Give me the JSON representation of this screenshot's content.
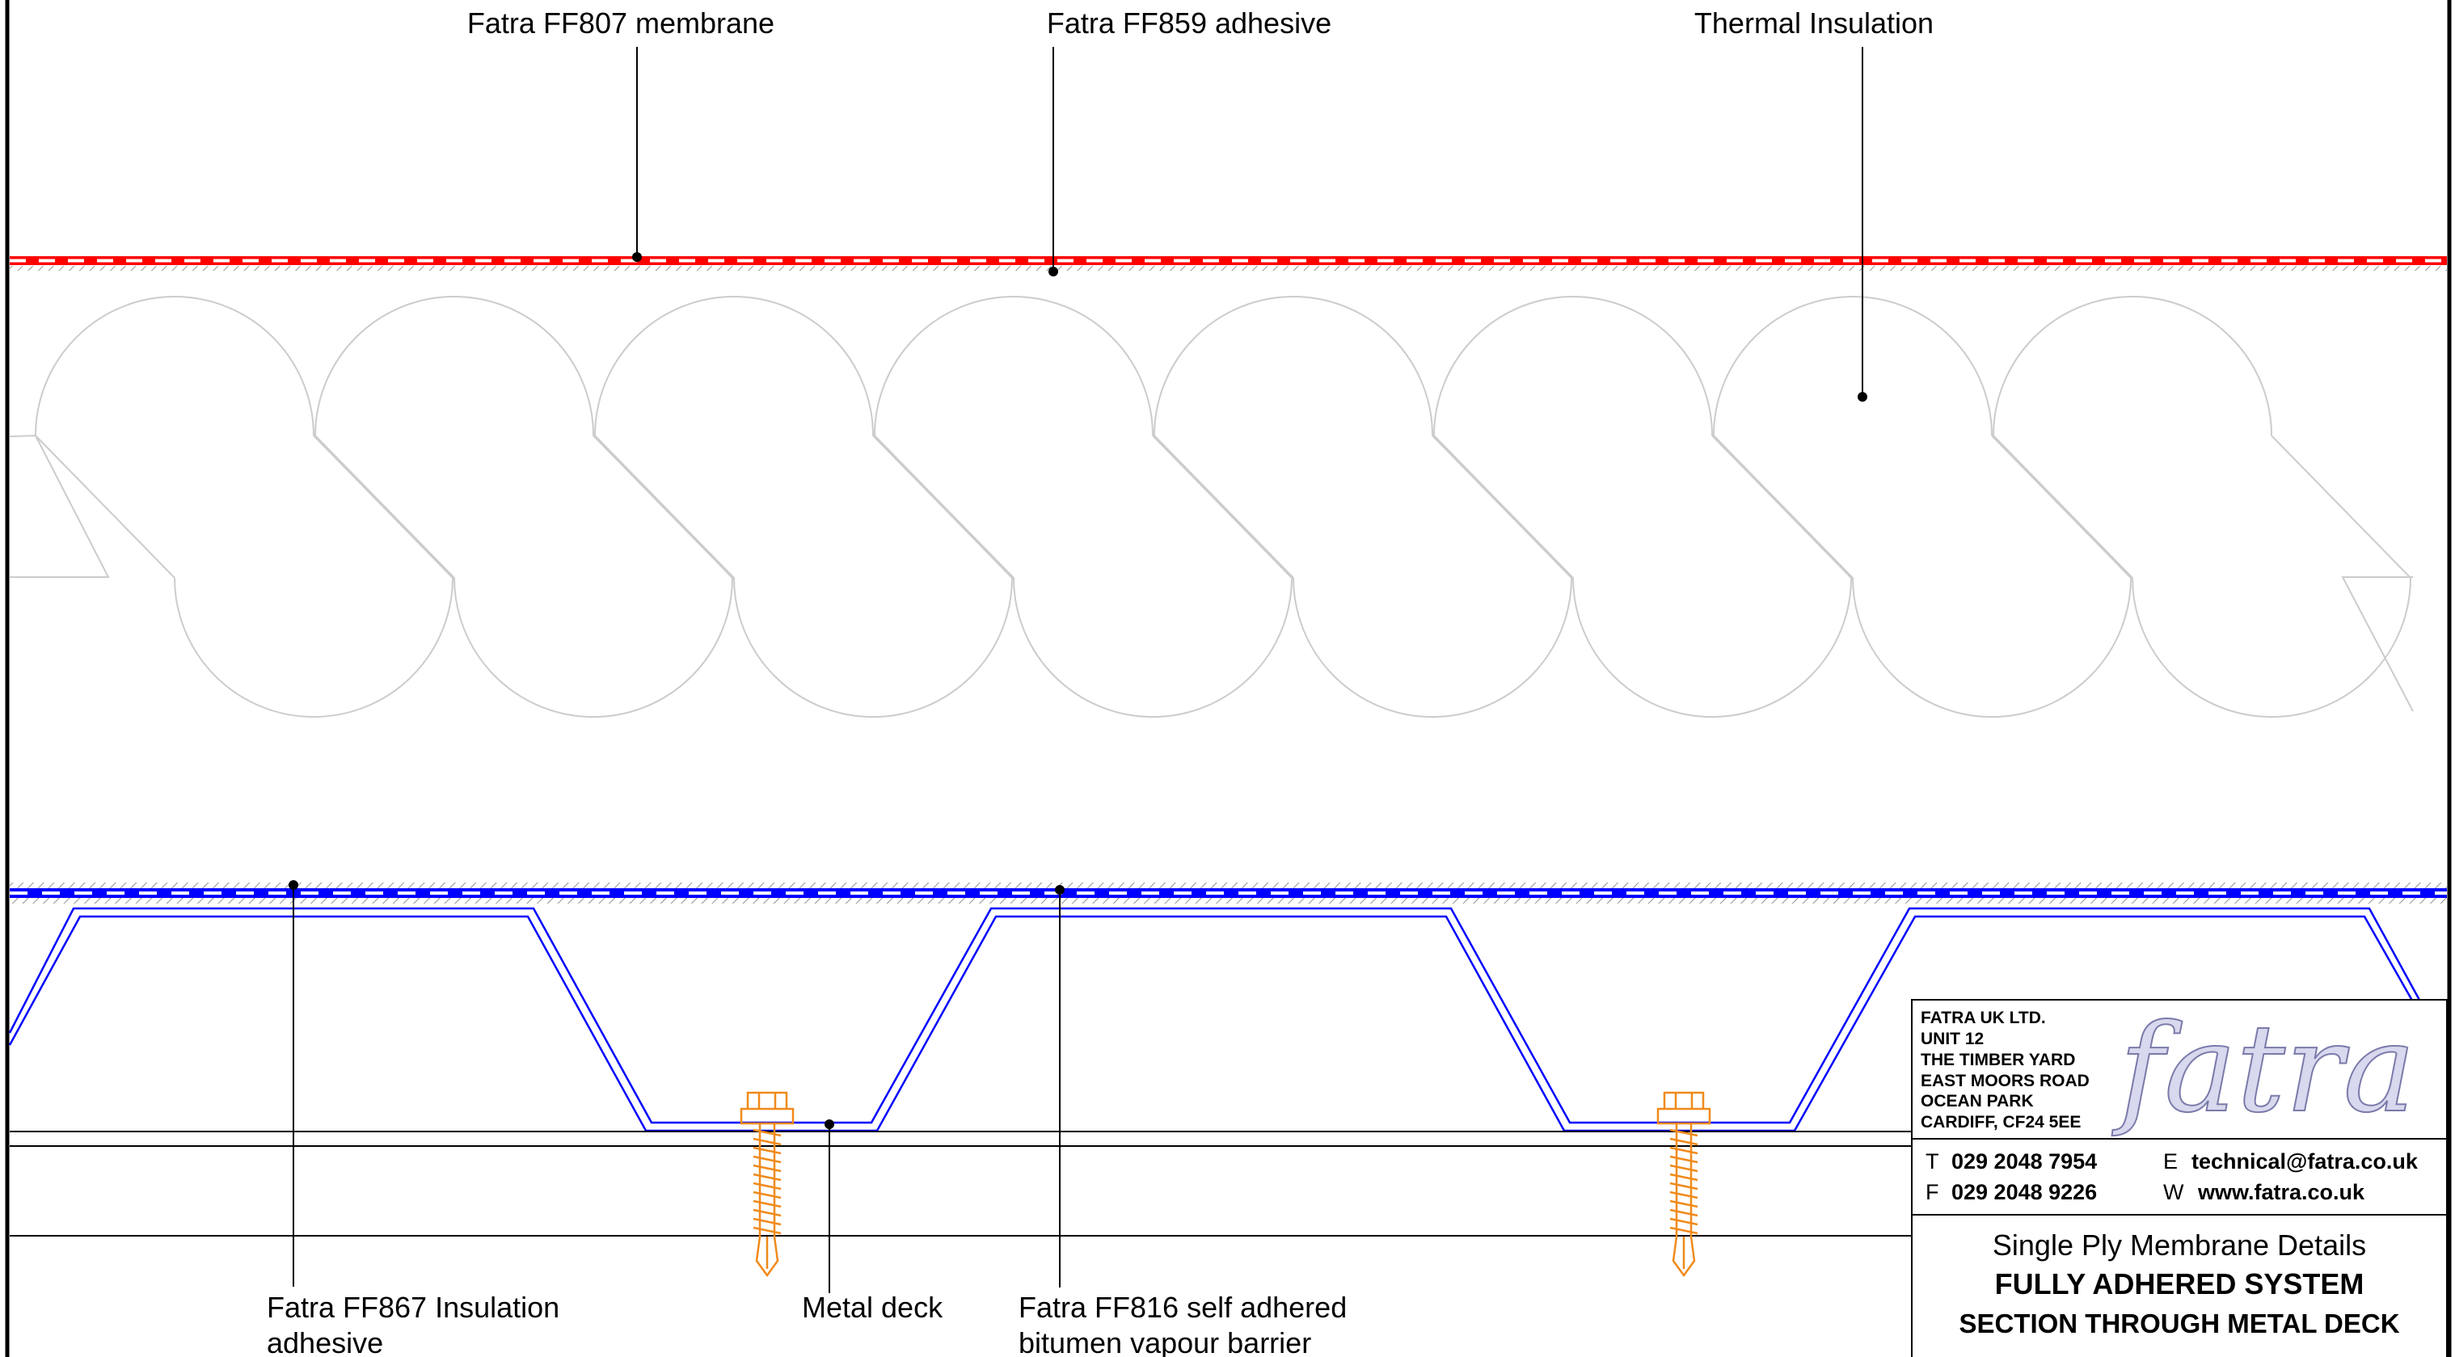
{
  "labels": {
    "membrane": "Fatra FF807 membrane",
    "adhesive": "Fatra FF859 adhesive",
    "insulation": "Thermal Insulation",
    "insulation_adhesive_line1": "Fatra FF867 Insulation",
    "insulation_adhesive_line2": "adhesive",
    "metal_deck": "Metal deck",
    "vapour_barrier_line1": "Fatra FF816 self adhered",
    "vapour_barrier_line2": "bitumen vapour barrier"
  },
  "title_block": {
    "address_lines": [
      "FATRA UK LTD.",
      "UNIT 12",
      "THE TIMBER YARD",
      "EAST MOORS ROAD",
      "OCEAN PARK",
      "CARDIFF, CF24 5EE"
    ],
    "logo_text": "fatra",
    "phone_prefix": "T",
    "phone": "029 2048 7954",
    "fax_prefix": "F",
    "fax": "029 2048 9226",
    "email_prefix": "E",
    "email": "technical@fatra.co.uk",
    "web_prefix": "W",
    "web": "www.fatra.co.uk",
    "subtitle": "Single Ply Membrane Details",
    "title_line1": "FULLY ADHERED SYSTEM",
    "title_line2": "SECTION THROUGH METAL DECK"
  },
  "colors": {
    "membrane": "#ff0000",
    "vapour_barrier": "#0000ff",
    "deck": "#0000ff",
    "fixing": "#f08a1a",
    "insulation": "#cccccc",
    "logo": "#b8b8d8"
  }
}
